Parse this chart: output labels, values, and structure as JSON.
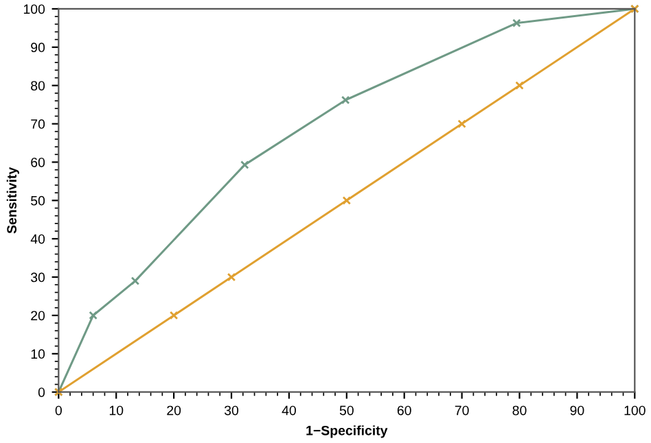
{
  "chart_data": {
    "type": "line",
    "xlabel": "1−Specificity",
    "ylabel": "Sensitivity",
    "xlim": [
      0,
      100
    ],
    "ylim": [
      0,
      100
    ],
    "xticks": [
      0,
      10,
      20,
      30,
      40,
      50,
      60,
      70,
      80,
      90,
      100
    ],
    "yticks": [
      0,
      10,
      20,
      30,
      40,
      50,
      60,
      70,
      80,
      90,
      100
    ],
    "grid": false,
    "marker": "cross",
    "line_style": "solid",
    "series": [
      {
        "color": "#6f9a86",
        "x": [
          0,
          6,
          13.3,
          32.3,
          49.8,
          79.5,
          100
        ],
        "values": [
          0,
          20,
          29,
          59.3,
          76.2,
          96.3,
          100
        ]
      },
      {
        "color": "#e0a030",
        "x": [
          0,
          20,
          30,
          50,
          70,
          80,
          100
        ],
        "values": [
          0,
          20,
          30,
          50,
          70,
          80,
          100
        ]
      }
    ]
  }
}
